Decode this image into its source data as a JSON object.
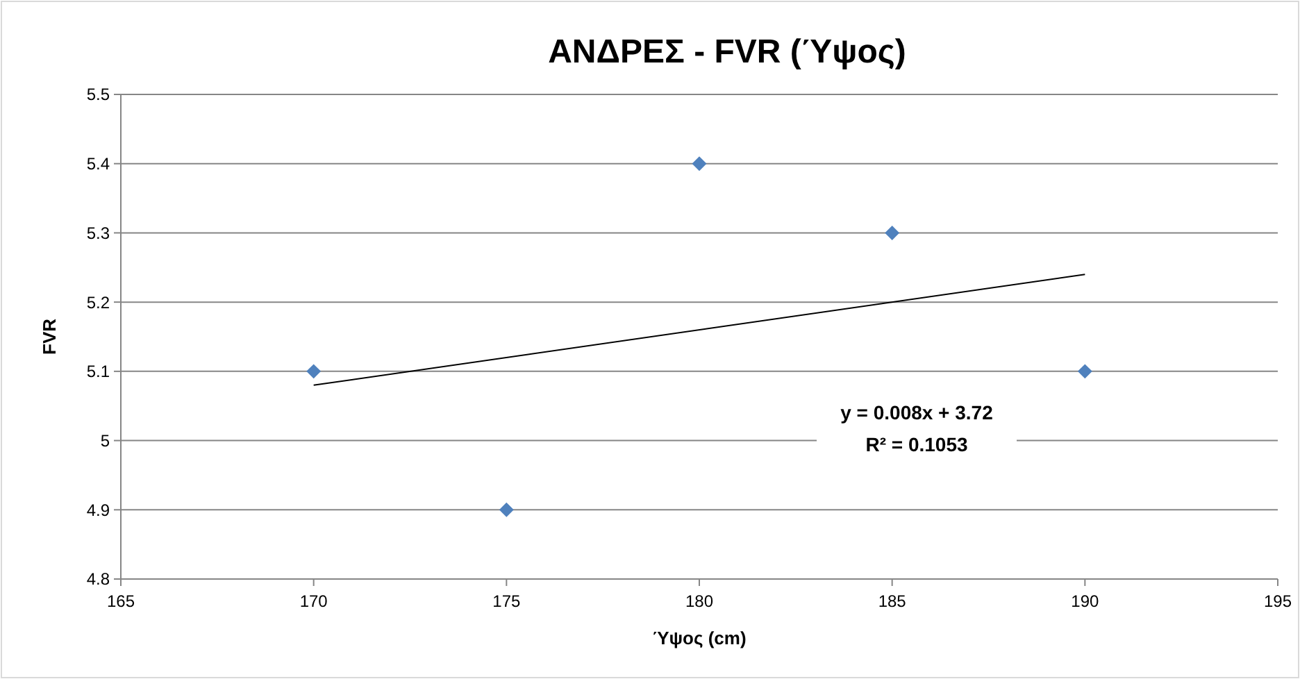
{
  "chart_data": {
    "type": "scatter",
    "title": "ΑΝΔΡΕΣ - FVR (Ύψος)",
    "xlabel": "Ύψος (cm)",
    "ylabel": "FVR",
    "xlim": [
      165,
      195
    ],
    "xticks": [
      165,
      170,
      175,
      180,
      185,
      190,
      195
    ],
    "ylim": [
      4.8,
      5.5
    ],
    "yticks": [
      {
        "value": 4.8,
        "label": "4.8"
      },
      {
        "value": 4.9,
        "label": "4.9"
      },
      5,
      {
        "value": 5.1,
        "label": "5.1"
      },
      {
        "value": 5.2,
        "label": "5.2"
      },
      {
        "value": 5.3,
        "label": "5.3"
      },
      {
        "value": 5.4,
        "label": "5.4"
      },
      {
        "value": 5.5,
        "label": "5.5"
      }
    ],
    "grid": "y",
    "marker": "diamond",
    "series": [
      {
        "color": "#4f81bd",
        "x": [
          170,
          175,
          180,
          185,
          190
        ],
        "values": [
          5.1,
          4.9,
          5.4,
          5.3,
          5.1
        ]
      },
      {
        "type": "line",
        "color": "#000000",
        "marker": "none",
        "x": [
          170,
          190
        ],
        "values": [
          5.08,
          5.24
        ]
      }
    ],
    "annotations": [
      "y = 0.008x + 3.72",
      "R² = 0.1053"
    ]
  }
}
